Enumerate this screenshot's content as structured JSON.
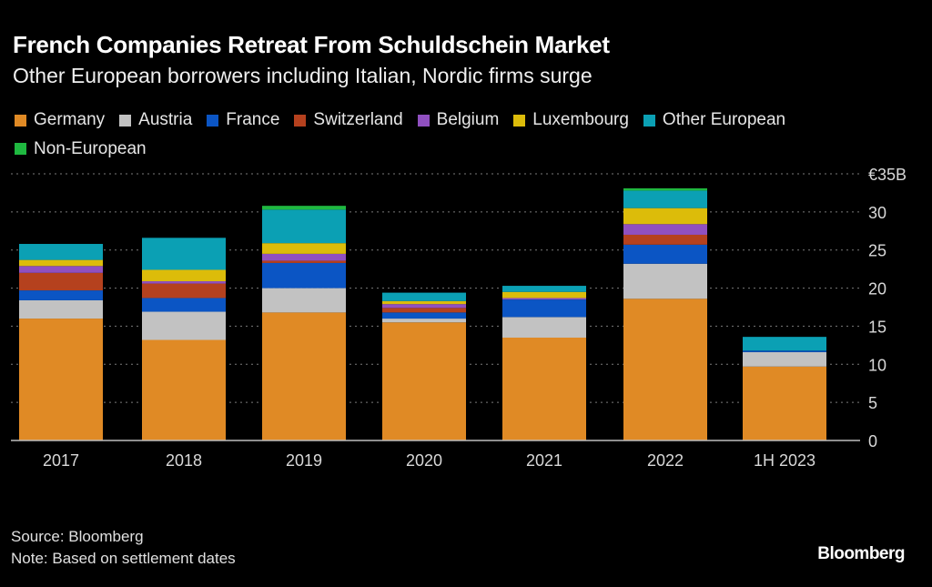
{
  "title": "French Companies Retreat From Schuldschein Market",
  "subtitle": "Other European borrowers including Italian, Nordic firms surge",
  "footer": {
    "source": "Source: Bloomberg",
    "note": "Note: Based on settlement dates",
    "brand": "Bloomberg"
  },
  "chart_data": {
    "type": "bar",
    "stacked": true,
    "title": "French Companies Retreat From Schuldschein Market",
    "subtitle": "Other European borrowers including Italian, Nordic firms surge",
    "xlabel": "",
    "ylabel": "",
    "y_unit_label": "€35B",
    "ylim": [
      0,
      35
    ],
    "yticks": [
      0,
      5,
      10,
      15,
      20,
      25,
      30,
      35
    ],
    "ytick_labels": [
      "0",
      "5",
      "10",
      "15",
      "20",
      "25",
      "30",
      "€35B"
    ],
    "y_axis_side": "right",
    "grid": true,
    "legend_placement": "top-left",
    "categories": [
      "2017",
      "2018",
      "2019",
      "2020",
      "2021",
      "2022",
      "1H 2023"
    ],
    "series": [
      {
        "name": "Germany",
        "color": "#e08a25",
        "values": [
          16.0,
          13.2,
          16.8,
          15.5,
          13.5,
          18.6,
          9.7
        ]
      },
      {
        "name": "Austria",
        "color": "#c2c2c2",
        "values": [
          2.4,
          3.7,
          3.2,
          0.5,
          2.7,
          4.6,
          1.9
        ]
      },
      {
        "name": "France",
        "color": "#0b55c4",
        "values": [
          1.3,
          1.8,
          3.3,
          0.8,
          2.3,
          2.5,
          0.2
        ]
      },
      {
        "name": "Switzerland",
        "color": "#b5411e",
        "values": [
          2.3,
          1.9,
          0.3,
          0.6,
          0.0,
          1.3,
          0.0
        ]
      },
      {
        "name": "Belgium",
        "color": "#9050c0",
        "values": [
          0.9,
          0.3,
          0.9,
          0.5,
          0.2,
          1.4,
          0.0
        ]
      },
      {
        "name": "Luxembourg",
        "color": "#dcbc0a",
        "values": [
          0.8,
          1.5,
          1.4,
          0.4,
          0.8,
          2.1,
          0.0
        ]
      },
      {
        "name": "Other European",
        "color": "#0ba0b4",
        "values": [
          2.1,
          4.2,
          4.4,
          1.1,
          0.8,
          2.3,
          1.8
        ]
      },
      {
        "name": "Non-European",
        "color": "#1fb840",
        "values": [
          0.0,
          0.0,
          0.5,
          0.0,
          0.0,
          0.3,
          0.0
        ]
      }
    ]
  }
}
